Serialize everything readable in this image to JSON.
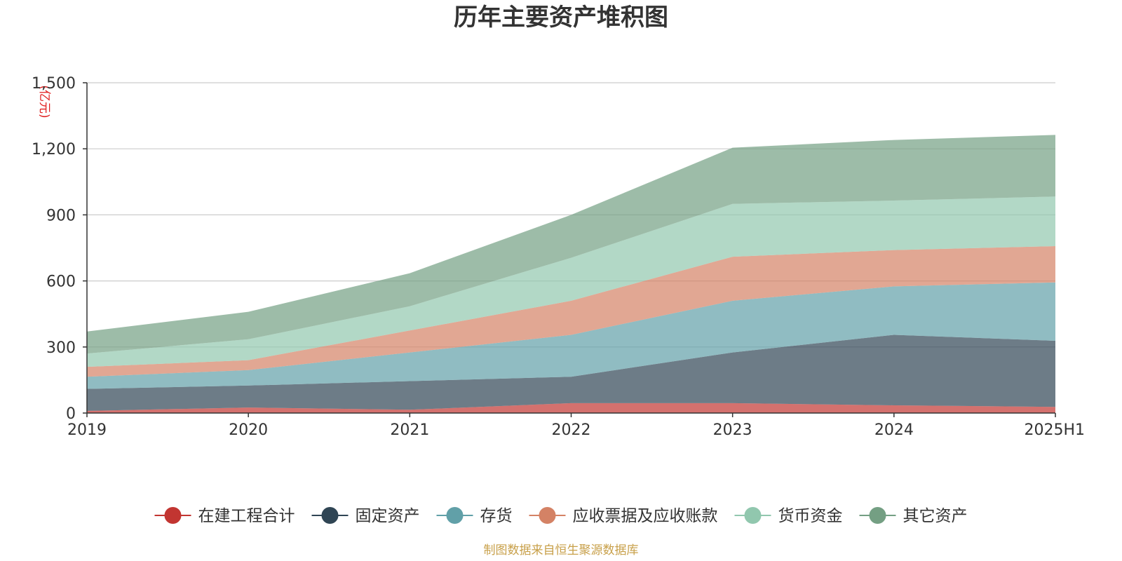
{
  "chart_data": {
    "type": "area",
    "stacked": true,
    "title": "历年主要资产堆积图",
    "unit_label": "(亿元)",
    "categories": [
      "2019",
      "2020",
      "2021",
      "2022",
      "2023",
      "2024",
      "2025H1"
    ],
    "y_ticks": [
      "0",
      "300",
      "600",
      "900",
      "1,200",
      "1,500"
    ],
    "ylim": [
      0,
      1500
    ],
    "grid": true,
    "legend_position": "bottom",
    "series": [
      {
        "name": "在建工程合计",
        "color": "#c23531",
        "values": [
          10,
          25,
          15,
          45,
          45,
          35,
          28
        ]
      },
      {
        "name": "固定资产",
        "color": "#2f4554",
        "values": [
          100,
          100,
          130,
          120,
          230,
          320,
          300
        ]
      },
      {
        "name": "存货",
        "color": "#61a0a8",
        "values": [
          55,
          70,
          130,
          190,
          235,
          220,
          265
        ]
      },
      {
        "name": "应收票据及应收账款",
        "color": "#d48265",
        "values": [
          45,
          45,
          100,
          155,
          200,
          165,
          165
        ]
      },
      {
        "name": "货币资金",
        "color": "#91c7ae",
        "values": [
          60,
          95,
          110,
          195,
          240,
          225,
          225
        ]
      },
      {
        "name": "其它资产",
        "color": "#749f83",
        "values": [
          100,
          125,
          150,
          195,
          255,
          275,
          280
        ]
      }
    ]
  },
  "source": "制图数据来自恒生聚源数据库"
}
